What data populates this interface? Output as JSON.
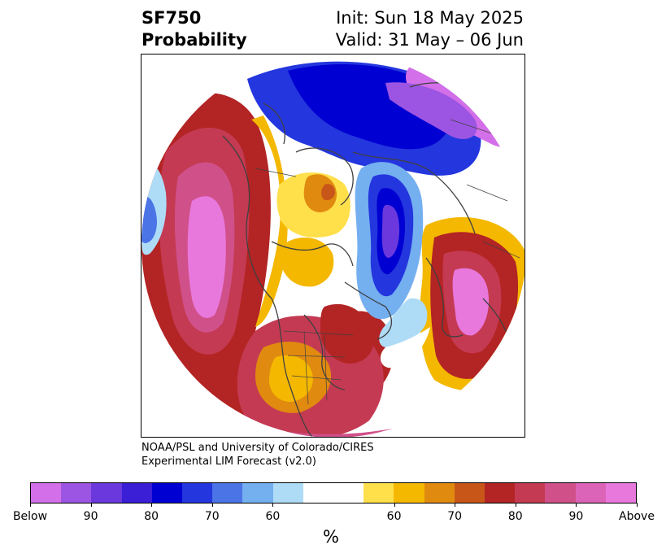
{
  "title": {
    "variable": "SF750",
    "product": "Probability",
    "init": "Init: Sun 18 May 2025",
    "valid": "Valid: 31 May – 06 Jun"
  },
  "credit": {
    "line1": "NOAA/PSL and University of Colorado/CIRES",
    "line2": "Experimental LIM Forecast (v2.0)"
  },
  "colorbar": {
    "unit": "%",
    "tick_labels": [
      "Below",
      "90",
      "80",
      "70",
      "60",
      "60",
      "70",
      "80",
      "90",
      "Above"
    ],
    "colors": [
      "#d36fe8",
      "#9c55e2",
      "#6a38dc",
      "#3a1fd6",
      "#0000d2",
      "#2436de",
      "#4b74e6",
      "#74aff0",
      "#aedcf7",
      "#ffffff",
      "#ffffff",
      "#ffe04a",
      "#f4b800",
      "#e08a10",
      "#c85618",
      "#b32424",
      "#c43a52",
      "#d0508a",
      "#dc64b8",
      "#e878dc"
    ]
  },
  "map": {
    "projection": "north-polar-stereographic",
    "features": [
      "coastlines",
      "country-borders",
      "us-state-borders"
    ]
  }
}
